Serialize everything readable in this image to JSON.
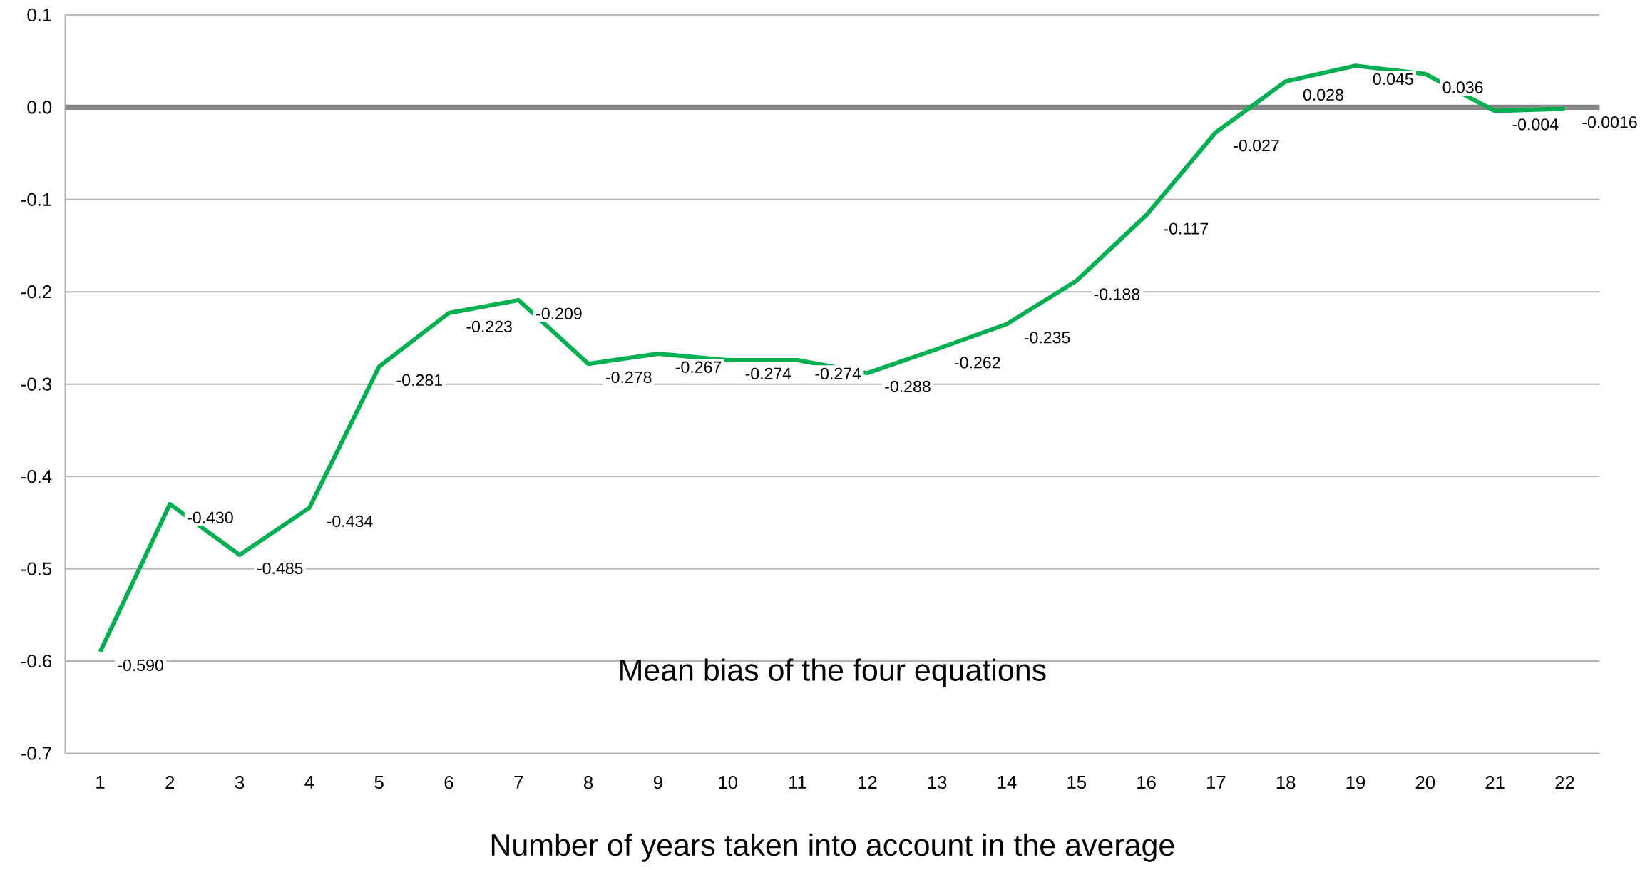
{
  "chart_data": {
    "type": "line",
    "title": "Mean bias of the four equations",
    "xlabel": "Number of years taken into account in the average",
    "categories": [
      "1",
      "2",
      "3",
      "4",
      "5",
      "6",
      "7",
      "8",
      "9",
      "10",
      "11",
      "12",
      "13",
      "14",
      "15",
      "16",
      "17",
      "18",
      "19",
      "20",
      "21",
      "22"
    ],
    "series": [
      {
        "color": "#00b050",
        "values": [
          -0.59,
          -0.43,
          -0.485,
          -0.434,
          -0.281,
          -0.223,
          -0.209,
          -0.278,
          -0.267,
          -0.274,
          -0.274,
          -0.288,
          -0.262,
          -0.235,
          -0.188,
          -0.117,
          -0.027,
          0.028,
          0.045,
          0.036,
          -0.004,
          -0.0016
        ],
        "value_labels": [
          "-0.590",
          "-0.430",
          "-0.485",
          "-0.434",
          "-0.281",
          "-0.223",
          "-0.209",
          "-0.278",
          "-0.267",
          "-0.274",
          "-0.274",
          "-0.288",
          "-0.262",
          "-0.235",
          "-0.188",
          "-0.117",
          "-0.027",
          "0.028",
          "0.045",
          "0.036",
          "-0.004",
          "-0.0016"
        ]
      }
    ],
    "ylim": [
      -0.7,
      0.1
    ],
    "yticks": [
      0.1,
      {
        "value": 0,
        "label": "0.0"
      },
      -0.1,
      -0.2,
      -0.3,
      -0.4,
      -0.5,
      -0.6,
      -0.7
    ],
    "ref_lines": [
      {
        "axis": "y",
        "value": 0,
        "color": "#888888"
      }
    ],
    "grid": "y",
    "marker": "none",
    "line_style": "solid"
  }
}
